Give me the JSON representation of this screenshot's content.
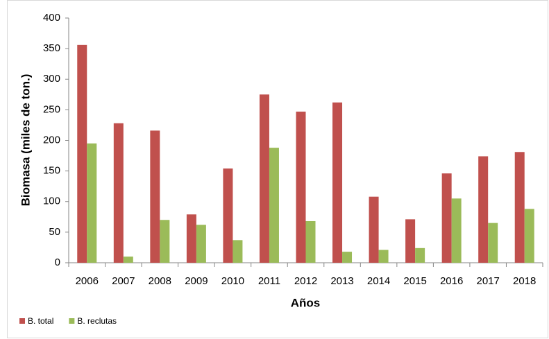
{
  "chart_data": {
    "type": "bar",
    "y_label": "Biomasa (miles de ton.)",
    "x_label": "Años",
    "categories": [
      "2006",
      "2007",
      "2008",
      "2009",
      "2010",
      "2011",
      "2012",
      "2013",
      "2014",
      "2015",
      "2016",
      "2017",
      "2018"
    ],
    "series": [
      {
        "name": "B. total",
        "color": "#c0504d",
        "values": [
          356,
          228,
          216,
          79,
          154,
          275,
          247,
          262,
          108,
          71,
          146,
          174,
          181
        ]
      },
      {
        "name": "B. reclutas",
        "color": "#9bbb59",
        "values": [
          195,
          10,
          70,
          62,
          37,
          188,
          68,
          18,
          21,
          24,
          105,
          65,
          88
        ]
      }
    ],
    "ylim": [
      0,
      400
    ],
    "yticks": [
      0,
      50,
      100,
      150,
      200,
      250,
      300,
      350,
      400
    ],
    "legend": "bottom-left",
    "grid": false
  }
}
